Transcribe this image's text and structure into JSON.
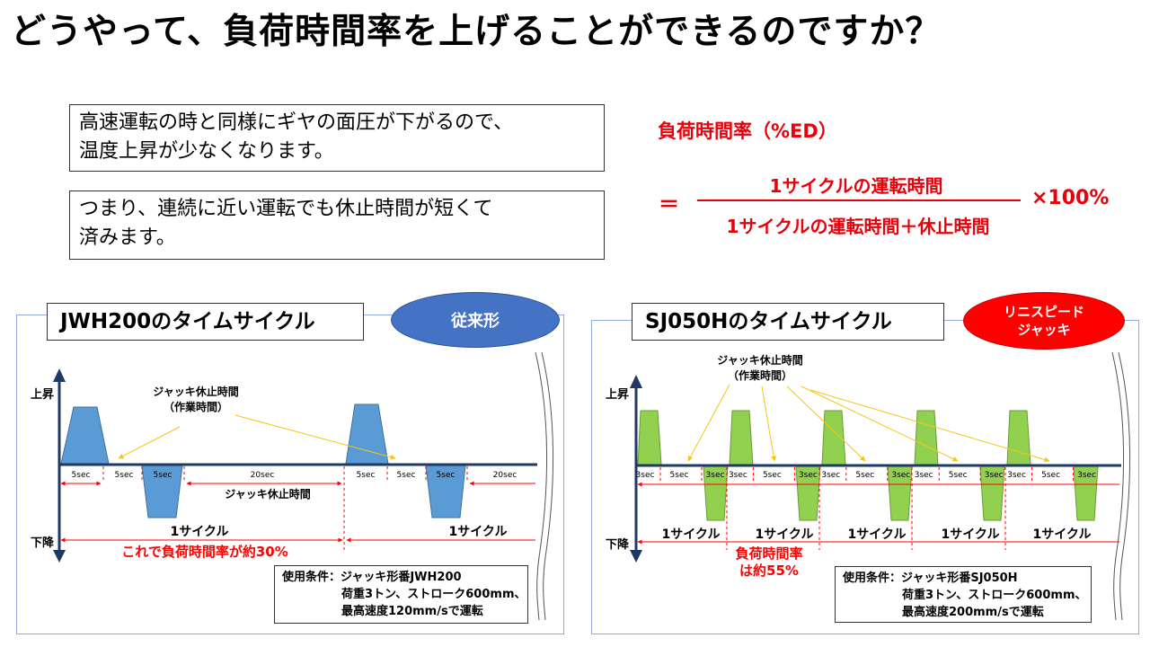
{
  "title": "どうやって、負荷時間率を上げることができるのですか？",
  "explain": {
    "box1": [
      "高速運転の時と同様にギヤの面圧が下がるので、",
      "温度上昇が少なくなります。"
    ],
    "box2": [
      "つまり、連続に近い運転でも休止時間が短くて",
      "済みます。"
    ]
  },
  "formula": {
    "title": "負荷時間率（%ED）",
    "equals": "＝",
    "numerator": "1サイクルの運転時間",
    "denominator": "1サイクルの運転時間＋休止時間",
    "multiplier": "×100%",
    "color": "#e8000b"
  },
  "panel_left": {
    "title": "JWH200のタイムサイクル",
    "badge": "従来形",
    "up_label": "上昇",
    "down_label": "下降",
    "pause_label_1": "ジャッキ休止時間",
    "pause_label_2": "（作業時間）",
    "segments": [
      "5sec",
      "5sec",
      "5sec",
      "20sec",
      "5sec",
      "5sec",
      "5sec",
      "20sec"
    ],
    "pause_under": "ジャッキ休止時間",
    "cycle_label": "1サイクル",
    "result": "これで負荷時間率が約30%",
    "condition": [
      "使用条件：ジャッキ形番JWH200",
      "荷重3トン、ストローク600mm、",
      "最高速度120mm/sで運転"
    ],
    "bar_color": "#5b9bd5"
  },
  "panel_right": {
    "title": "SJ050Hのタイムサイクル",
    "badge": [
      "リニスピード",
      "ジャッキ"
    ],
    "up_label": "上昇",
    "down_label": "下降",
    "pause_label_1": "ジャッキ休止時間",
    "pause_label_2": "（作業時間）",
    "segments": [
      "3sec",
      "5sec",
      "3sec",
      "3sec",
      "5sec",
      "3sec",
      "3sec",
      "5sec",
      "3sec",
      "3sec",
      "5sec",
      "3sec",
      "3sec",
      "5sec",
      "3sec",
      "3sec",
      "5sec",
      "3sec"
    ],
    "cycle_label": "1サイクル",
    "result": [
      "負荷時間率",
      "は約55%"
    ],
    "condition": [
      "使用条件：ジャッキ形番SJ050H",
      "荷重3トン、ストローク600mm、",
      "最高速度200mm/sで運転"
    ],
    "bar_color": "#92d050"
  }
}
